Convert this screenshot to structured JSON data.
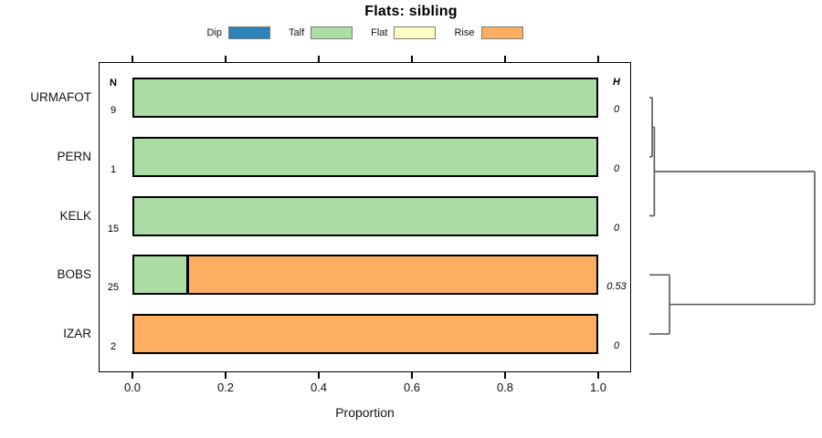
{
  "chart_data": {
    "type": "bar",
    "orientation": "horizontal",
    "stacked": true,
    "title": "Flats: sibling",
    "xlabel": "Proportion",
    "xlim": [
      0,
      1
    ],
    "x_ticks": [
      "0.0",
      "0.2",
      "0.4",
      "0.6",
      "0.8",
      "1.0"
    ],
    "grid": false,
    "legend_position": "top",
    "legend": [
      {
        "label": "Dip",
        "color": "#2B83BA"
      },
      {
        "label": "Talf",
        "color": "#ABDDA4"
      },
      {
        "label": "Flat",
        "color": "#FFFFBF"
      },
      {
        "label": "Rise",
        "color": "#FDAE61"
      }
    ],
    "columns": {
      "n_header": "N",
      "h_header": "H"
    },
    "rows": [
      {
        "label": "URMAFOT",
        "n": "9",
        "h": "0",
        "segments": [
          {
            "category": "Talf",
            "value": 1.0
          }
        ]
      },
      {
        "label": "PERN",
        "n": "1",
        "h": "0",
        "segments": [
          {
            "category": "Talf",
            "value": 1.0
          }
        ]
      },
      {
        "label": "KELK",
        "n": "15",
        "h": "0",
        "segments": [
          {
            "category": "Talf",
            "value": 1.0
          }
        ]
      },
      {
        "label": "BOBS",
        "n": "25",
        "h": "0.53",
        "segments": [
          {
            "category": "Talf",
            "value": 0.12
          },
          {
            "category": "Rise",
            "value": 0.88
          }
        ]
      },
      {
        "label": "IZAR",
        "n": "2",
        "h": "0",
        "segments": [
          {
            "category": "Rise",
            "value": 1.0
          }
        ]
      }
    ],
    "dendrogram": {
      "line_color": "#565656",
      "merges": [
        {
          "a": "URMAFOT",
          "b": "PERN",
          "height": 0.017
        },
        {
          "a": "M0",
          "b": "KELK",
          "height": 0.03
        },
        {
          "a": "BOBS",
          "b": "IZAR",
          "height": 0.122
        },
        {
          "a": "M1",
          "b": "M2",
          "height": 1.0
        }
      ]
    }
  }
}
